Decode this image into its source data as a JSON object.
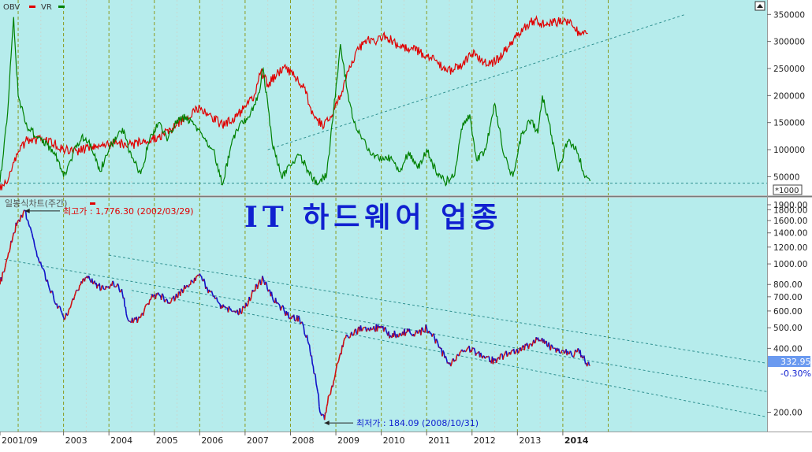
{
  "colors": {
    "background": "#b6ecec",
    "obv": "#e00000",
    "vr": "#008000",
    "price_up": "#d01010",
    "price_down": "#1010c8",
    "trend": "#2f8f8f",
    "year_grid": "#8a9a20",
    "title": "#1020d0",
    "price_box": "#6a9af0"
  },
  "top_panel": {
    "legend": [
      {
        "label": "OBV",
        "color": "#e00000"
      },
      {
        "label": "VR",
        "color": "#008000"
      }
    ],
    "unit_label": "*1000",
    "yticks": [
      "350000",
      "300000",
      "250000",
      "200000",
      "150000",
      "100000",
      "50000"
    ]
  },
  "bottom_panel": {
    "legend": "일봉식차트(주간)",
    "title": "IT 하드웨어 업종",
    "high_label": "최고가 : 1,776.30 (2002/03/29)",
    "low_label": "최저가 : 184.09 (2008/10/31)",
    "last_price": "332.95",
    "change": "-0.30%",
    "yticks": [
      "1900.00",
      "1800.00",
      "1600.00",
      "1400.00",
      "1200.00",
      "1000.00",
      "800.00",
      "700.00",
      "600.00",
      "500.00",
      "400.00",
      "200.00"
    ]
  },
  "x_axis": {
    "labels": [
      "2001/09",
      "2003",
      "2004",
      "2005",
      "2006",
      "2007",
      "2008",
      "2009",
      "2010",
      "2011",
      "2012",
      "2013",
      "2014"
    ]
  },
  "chart_data": [
    {
      "type": "line",
      "x_unit": "year",
      "xlim": [
        2001.6,
        2018.5
      ],
      "ylim": [
        20000,
        365000
      ],
      "series": [
        {
          "name": "OBV",
          "color": "#e00000",
          "points": [
            [
              2001.6,
              25000
            ],
            [
              2001.8,
              50000
            ],
            [
              2002.0,
              95000
            ],
            [
              2002.2,
              118000
            ],
            [
              2002.5,
              118000
            ],
            [
              2002.8,
              112000
            ],
            [
              2003.0,
              100000
            ],
            [
              2003.3,
              97000
            ],
            [
              2003.6,
              105000
            ],
            [
              2003.9,
              110000
            ],
            [
              2004.2,
              112000
            ],
            [
              2004.5,
              108000
            ],
            [
              2004.8,
              118000
            ],
            [
              2005.1,
              123000
            ],
            [
              2005.4,
              140000
            ],
            [
              2005.7,
              160000
            ],
            [
              2006.0,
              180000
            ],
            [
              2006.2,
              165000
            ],
            [
              2006.5,
              145000
            ],
            [
              2006.8,
              160000
            ],
            [
              2007.0,
              180000
            ],
            [
              2007.2,
              200000
            ],
            [
              2007.35,
              245000
            ],
            [
              2007.5,
              220000
            ],
            [
              2007.7,
              240000
            ],
            [
              2007.9,
              250000
            ],
            [
              2008.1,
              235000
            ],
            [
              2008.3,
              215000
            ],
            [
              2008.5,
              165000
            ],
            [
              2008.7,
              145000
            ],
            [
              2008.9,
              160000
            ],
            [
              2009.1,
              200000
            ],
            [
              2009.3,
              255000
            ],
            [
              2009.5,
              285000
            ],
            [
              2009.7,
              305000
            ],
            [
              2009.9,
              300000
            ],
            [
              2010.1,
              310000
            ],
            [
              2010.4,
              290000
            ],
            [
              2010.7,
              285000
            ],
            [
              2011.0,
              275000
            ],
            [
              2011.2,
              265000
            ],
            [
              2011.4,
              245000
            ],
            [
              2011.6,
              248000
            ],
            [
              2011.8,
              260000
            ],
            [
              2012.0,
              278000
            ],
            [
              2012.2,
              265000
            ],
            [
              2012.4,
              258000
            ],
            [
              2012.6,
              270000
            ],
            [
              2012.8,
              290000
            ],
            [
              2013.0,
              310000
            ],
            [
              2013.2,
              330000
            ],
            [
              2013.4,
              340000
            ],
            [
              2013.6,
              330000
            ],
            [
              2013.8,
              335000
            ],
            [
              2014.0,
              338000
            ],
            [
              2014.2,
              330000
            ],
            [
              2014.4,
              312000
            ],
            [
              2014.55,
              315000
            ]
          ]
        },
        {
          "name": "VR",
          "color": "#008000",
          "points": [
            [
              2001.6,
              40000
            ],
            [
              2001.75,
              150000
            ],
            [
              2001.9,
              345000
            ],
            [
              2002.0,
              200000
            ],
            [
              2002.2,
              140000
            ],
            [
              2002.5,
              120000
            ],
            [
              2002.8,
              95000
            ],
            [
              2003.0,
              50000
            ],
            [
              2003.2,
              90000
            ],
            [
              2003.4,
              125000
            ],
            [
              2003.6,
              110000
            ],
            [
              2003.8,
              60000
            ],
            [
              2004.0,
              100000
            ],
            [
              2004.3,
              140000
            ],
            [
              2004.5,
              85000
            ],
            [
              2004.7,
              55000
            ],
            [
              2004.9,
              120000
            ],
            [
              2005.1,
              150000
            ],
            [
              2005.3,
              120000
            ],
            [
              2005.5,
              155000
            ],
            [
              2005.7,
              160000
            ],
            [
              2005.9,
              145000
            ],
            [
              2006.1,
              120000
            ],
            [
              2006.3,
              100000
            ],
            [
              2006.5,
              35000
            ],
            [
              2006.7,
              110000
            ],
            [
              2006.9,
              150000
            ],
            [
              2007.1,
              160000
            ],
            [
              2007.3,
              205000
            ],
            [
              2007.4,
              250000
            ],
            [
              2007.6,
              110000
            ],
            [
              2007.8,
              50000
            ],
            [
              2008.0,
              70000
            ],
            [
              2008.2,
              90000
            ],
            [
              2008.4,
              60000
            ],
            [
              2008.6,
              35000
            ],
            [
              2008.8,
              55000
            ],
            [
              2008.95,
              170000
            ],
            [
              2009.1,
              295000
            ],
            [
              2009.25,
              210000
            ],
            [
              2009.4,
              150000
            ],
            [
              2009.6,
              120000
            ],
            [
              2009.8,
              90000
            ],
            [
              2010.0,
              80000
            ],
            [
              2010.2,
              85000
            ],
            [
              2010.4,
              60000
            ],
            [
              2010.6,
              95000
            ],
            [
              2010.8,
              65000
            ],
            [
              2011.0,
              100000
            ],
            [
              2011.2,
              60000
            ],
            [
              2011.4,
              40000
            ],
            [
              2011.6,
              50000
            ],
            [
              2011.8,
              150000
            ],
            [
              2011.95,
              165000
            ],
            [
              2012.1,
              80000
            ],
            [
              2012.3,
              100000
            ],
            [
              2012.5,
              185000
            ],
            [
              2012.7,
              90000
            ],
            [
              2012.9,
              50000
            ],
            [
              2013.1,
              130000
            ],
            [
              2013.3,
              155000
            ],
            [
              2013.45,
              130000
            ],
            [
              2013.55,
              200000
            ],
            [
              2013.7,
              150000
            ],
            [
              2013.9,
              60000
            ],
            [
              2014.1,
              115000
            ],
            [
              2014.3,
              100000
            ],
            [
              2014.5,
              50000
            ],
            [
              2014.6,
              42000
            ]
          ]
        }
      ]
    },
    {
      "type": "line",
      "x_unit": "year",
      "xlim": [
        2001.6,
        2018.5
      ],
      "ylim": [
        165,
        2000
      ],
      "yscale": "log",
      "series": [
        {
          "name": "일봉식차트(주간)",
          "points": [
            [
              2001.6,
              800
            ],
            [
              2001.75,
              1050
            ],
            [
              2001.9,
              1400
            ],
            [
              2002.0,
              1600
            ],
            [
              2002.15,
              1776
            ],
            [
              2002.25,
              1500
            ],
            [
              2002.4,
              1150
            ],
            [
              2002.55,
              950
            ],
            [
              2002.7,
              750
            ],
            [
              2002.85,
              650
            ],
            [
              2003.0,
              560
            ],
            [
              2003.15,
              620
            ],
            [
              2003.3,
              750
            ],
            [
              2003.5,
              860
            ],
            [
              2003.7,
              800
            ],
            [
              2003.9,
              760
            ],
            [
              2004.1,
              820
            ],
            [
              2004.3,
              720
            ],
            [
              2004.4,
              560
            ],
            [
              2004.55,
              540
            ],
            [
              2004.7,
              560
            ],
            [
              2004.9,
              680
            ],
            [
              2005.1,
              720
            ],
            [
              2005.3,
              650
            ],
            [
              2005.5,
              700
            ],
            [
              2005.7,
              780
            ],
            [
              2005.85,
              820
            ],
            [
              2006.0,
              900
            ],
            [
              2006.15,
              780
            ],
            [
              2006.3,
              700
            ],
            [
              2006.5,
              620
            ],
            [
              2006.7,
              600
            ],
            [
              2006.9,
              600
            ],
            [
              2007.0,
              620
            ],
            [
              2007.2,
              750
            ],
            [
              2007.4,
              850
            ],
            [
              2007.6,
              700
            ],
            [
              2007.8,
              620
            ],
            [
              2008.0,
              560
            ],
            [
              2008.2,
              550
            ],
            [
              2008.4,
              420
            ],
            [
              2008.5,
              330
            ],
            [
              2008.6,
              250
            ],
            [
              2008.65,
              200
            ],
            [
              2008.75,
              184.09
            ],
            [
              2008.85,
              240
            ],
            [
              2008.95,
              280
            ],
            [
              2009.1,
              380
            ],
            [
              2009.25,
              460
            ],
            [
              2009.4,
              470
            ],
            [
              2009.6,
              500
            ],
            [
              2009.8,
              490
            ],
            [
              2010.0,
              510
            ],
            [
              2010.2,
              460
            ],
            [
              2010.4,
              470
            ],
            [
              2010.6,
              480
            ],
            [
              2010.8,
              470
            ],
            [
              2011.0,
              500
            ],
            [
              2011.1,
              470
            ],
            [
              2011.25,
              420
            ],
            [
              2011.4,
              360
            ],
            [
              2011.55,
              340
            ],
            [
              2011.7,
              370
            ],
            [
              2011.9,
              400
            ],
            [
              2012.1,
              380
            ],
            [
              2012.3,
              360
            ],
            [
              2012.5,
              350
            ],
            [
              2012.7,
              370
            ],
            [
              2012.9,
              390
            ],
            [
              2013.1,
              400
            ],
            [
              2013.3,
              420
            ],
            [
              2013.45,
              450
            ],
            [
              2013.6,
              420
            ],
            [
              2013.8,
              400
            ],
            [
              2014.0,
              390
            ],
            [
              2014.2,
              370
            ],
            [
              2014.35,
              395
            ],
            [
              2014.45,
              360
            ],
            [
              2014.55,
              340
            ],
            [
              2014.6,
              332.95
            ]
          ]
        }
      ]
    }
  ]
}
